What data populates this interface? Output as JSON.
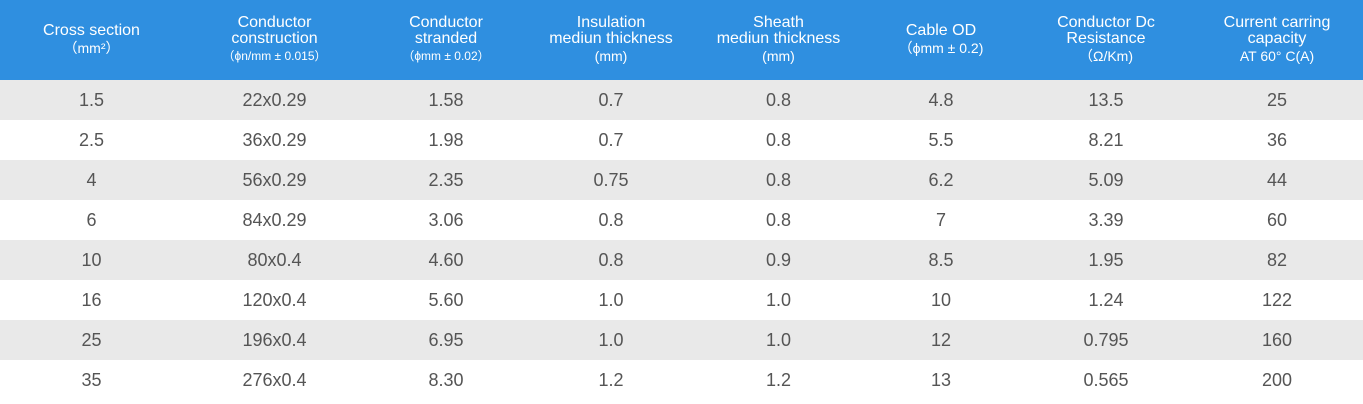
{
  "colors": {
    "header_background": "#2f8fe0",
    "header_text": "#ffffff",
    "row_shaded": "#e9e9e9",
    "row_plain": "#ffffff",
    "cell_text": "#555555"
  },
  "table": {
    "headers": [
      {
        "lines": [
          "Cross section"
        ],
        "unit": "（mm²）",
        "unit_small": false
      },
      {
        "lines": [
          "Conductor",
          "construction"
        ],
        "unit": "（ϕn/mm ± 0.015）",
        "unit_small": true
      },
      {
        "lines": [
          "Conductor",
          "stranded"
        ],
        "unit": "（ϕmm ± 0.02）",
        "unit_small": true
      },
      {
        "lines": [
          "Insulation",
          "mediun thickness"
        ],
        "unit": "(mm)",
        "unit_small": false
      },
      {
        "lines": [
          "Sheath",
          "mediun thickness"
        ],
        "unit": "(mm)",
        "unit_small": false
      },
      {
        "lines": [
          "Cable OD"
        ],
        "unit": "（ϕmm ± 0.2)",
        "unit_small": false
      },
      {
        "lines": [
          "Conductor Dc",
          "Resistance"
        ],
        "unit": "（Ω/Km)",
        "unit_small": false
      },
      {
        "lines": [
          "Current carring",
          "capacity"
        ],
        "unit": "AT 60°  C(A)",
        "unit_small": false
      }
    ],
    "rows": [
      [
        "1.5",
        "22x0.29",
        "1.58",
        "0.7",
        "0.8",
        "4.8",
        "13.5",
        "25"
      ],
      [
        "2.5",
        "36x0.29",
        "1.98",
        "0.7",
        "0.8",
        "5.5",
        "8.21",
        "36"
      ],
      [
        "4",
        "56x0.29",
        "2.35",
        "0.75",
        "0.8",
        "6.2",
        "5.09",
        "44"
      ],
      [
        "6",
        "84x0.29",
        "3.06",
        "0.8",
        "0.8",
        "7",
        "3.39",
        "60"
      ],
      [
        "10",
        "80x0.4",
        "4.60",
        "0.8",
        "0.9",
        "8.5",
        "1.95",
        "82"
      ],
      [
        "16",
        "120x0.4",
        "5.60",
        "1.0",
        "1.0",
        "10",
        "1.24",
        "122"
      ],
      [
        "25",
        "196x0.4",
        "6.95",
        "1.0",
        "1.0",
        "12",
        "0.795",
        "160"
      ],
      [
        "35",
        "276x0.4",
        "8.30",
        "1.2",
        "1.2",
        "13",
        "0.565",
        "200"
      ]
    ]
  }
}
